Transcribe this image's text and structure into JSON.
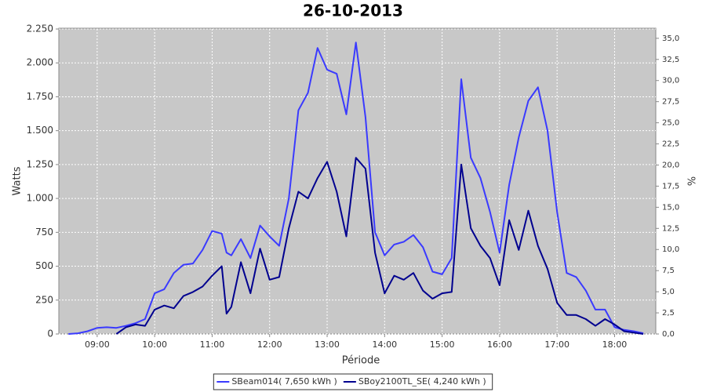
{
  "chart_data": {
    "type": "line",
    "title": "26-10-2013",
    "x_label": "Période",
    "y_label": "Watts",
    "y2_label": "%",
    "x": [
      "08:30",
      "08:40",
      "08:50",
      "09:00",
      "09:10",
      "09:20",
      "09:30",
      "09:40",
      "09:50",
      "10:00",
      "10:10",
      "10:20",
      "10:30",
      "10:40",
      "10:50",
      "11:00",
      "11:10",
      "11:15",
      "11:20",
      "11:30",
      "11:40",
      "11:50",
      "12:00",
      "12:10",
      "12:20",
      "12:30",
      "12:40",
      "12:50",
      "13:00",
      "13:10",
      "13:20",
      "13:30",
      "13:40",
      "13:50",
      "14:00",
      "14:10",
      "14:20",
      "14:30",
      "14:40",
      "14:50",
      "15:00",
      "15:10",
      "15:20",
      "15:30",
      "15:40",
      "15:50",
      "16:00",
      "16:10",
      "16:20",
      "16:30",
      "16:40",
      "16:50",
      "17:00",
      "17:10",
      "17:20",
      "17:30",
      "17:40",
      "17:50",
      "18:00",
      "18:10",
      "18:20",
      "18:30"
    ],
    "series": [
      {
        "name": "SBeam014( 7,650 kWh )",
        "color": "#3a3aff",
        "values": [
          0,
          5,
          20,
          45,
          50,
          45,
          60,
          80,
          110,
          300,
          330,
          450,
          510,
          520,
          620,
          760,
          740,
          600,
          580,
          700,
          560,
          800,
          720,
          650,
          1000,
          1650,
          1780,
          2110,
          1950,
          1920,
          1620,
          2150,
          1600,
          750,
          580,
          660,
          680,
          730,
          640,
          460,
          440,
          560,
          1880,
          1300,
          1150,
          900,
          600,
          1100,
          1450,
          1720,
          1820,
          1500,
          900,
          450,
          420,
          320,
          180,
          180,
          50,
          30,
          20,
          5
        ]
      },
      {
        "name": "SBoy2100TL_SE( 4,240 kWh )",
        "color": "#00008f",
        "values": [
          null,
          null,
          null,
          null,
          null,
          0,
          50,
          70,
          60,
          180,
          210,
          190,
          280,
          310,
          350,
          430,
          500,
          150,
          200,
          530,
          300,
          630,
          400,
          420,
          780,
          1050,
          1000,
          1150,
          1270,
          1050,
          720,
          1300,
          1220,
          600,
          300,
          430,
          400,
          450,
          320,
          260,
          300,
          310,
          1250,
          780,
          650,
          560,
          360,
          840,
          620,
          910,
          650,
          480,
          230,
          140,
          140,
          110,
          60,
          110,
          70,
          20,
          10,
          0
        ]
      }
    ],
    "xlim": [
      "08:20",
      "18:43"
    ],
    "xticks": [
      "09:00",
      "10:00",
      "11:00",
      "12:00",
      "13:00",
      "14:00",
      "15:00",
      "16:00",
      "17:00",
      "18:00"
    ],
    "ylim": [
      0,
      2250
    ],
    "yticks": [
      0,
      250,
      500,
      750,
      {
        "value": 1000,
        "label": "1.000"
      },
      {
        "value": 1250,
        "label": "1.250"
      },
      {
        "value": 1500,
        "label": "1.500"
      },
      {
        "value": 1750,
        "label": "1.750"
      },
      {
        "value": 2000,
        "label": "2.000"
      },
      {
        "value": 2250,
        "label": "2.250"
      }
    ],
    "y2lim": [
      0,
      36.1
    ],
    "y2ticks": [
      {
        "value": 0,
        "label": "0,0"
      },
      {
        "value": 2.5,
        "label": "2,5"
      },
      {
        "value": 5,
        "label": "5,0"
      },
      {
        "value": 7.5,
        "label": "7,5"
      },
      {
        "value": 10,
        "label": "10,0"
      },
      {
        "value": 12.5,
        "label": "12,5"
      },
      {
        "value": 15,
        "label": "15,0"
      },
      {
        "value": 17.5,
        "label": "17,5"
      },
      {
        "value": 20,
        "label": "20,0"
      },
      {
        "value": 22.5,
        "label": "22,5"
      },
      {
        "value": 25,
        "label": "25,0"
      },
      {
        "value": 27.5,
        "label": "27,5"
      },
      {
        "value": 30,
        "label": "30,0"
      },
      {
        "value": 32.5,
        "label": "32,5"
      },
      {
        "value": 35,
        "label": "35,0"
      }
    ],
    "grid": true,
    "plot_background": "#c8c8c8",
    "legend_position": "bottom"
  }
}
